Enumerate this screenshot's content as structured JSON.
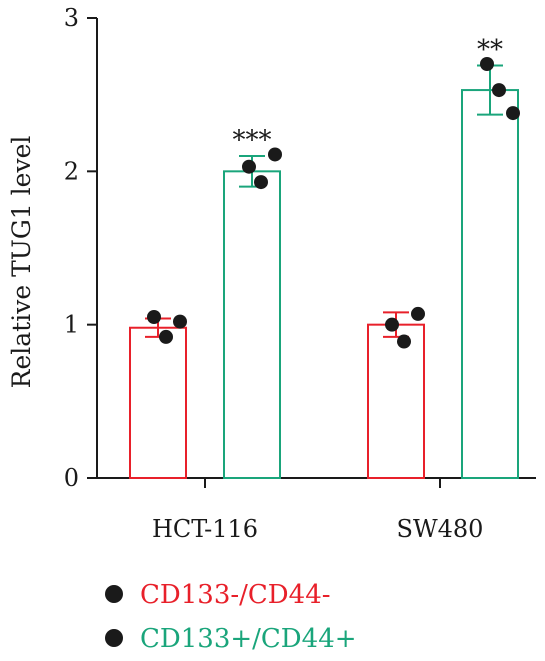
{
  "chart_data": {
    "type": "bar",
    "title": "",
    "xlabel": "",
    "ylabel": "Relative TUG1 level",
    "ylim": [
      0,
      3
    ],
    "yticks": [
      "0",
      "1",
      "2",
      "3"
    ],
    "categories": [
      "HCT-116",
      "SW480"
    ],
    "series": [
      {
        "name": "CD133-/CD44-",
        "color": "#e8202a",
        "values": [
          0.98,
          1.0
        ],
        "errors": [
          0.06,
          0.08
        ],
        "points": [
          [
            1.05,
            0.92,
            1.02
          ],
          [
            1.0,
            0.89,
            1.07
          ]
        ]
      },
      {
        "name": "CD133+/CD44+",
        "color": "#1aa57b",
        "values": [
          2.0,
          2.53
        ],
        "errors": [
          0.1,
          0.16
        ],
        "points": [
          [
            2.03,
            1.93,
            2.11
          ],
          [
            2.7,
            2.53,
            2.38
          ]
        ]
      }
    ],
    "annotations": [
      "***",
      "**"
    ],
    "legend_position": "bottom-left",
    "grid": false
  }
}
